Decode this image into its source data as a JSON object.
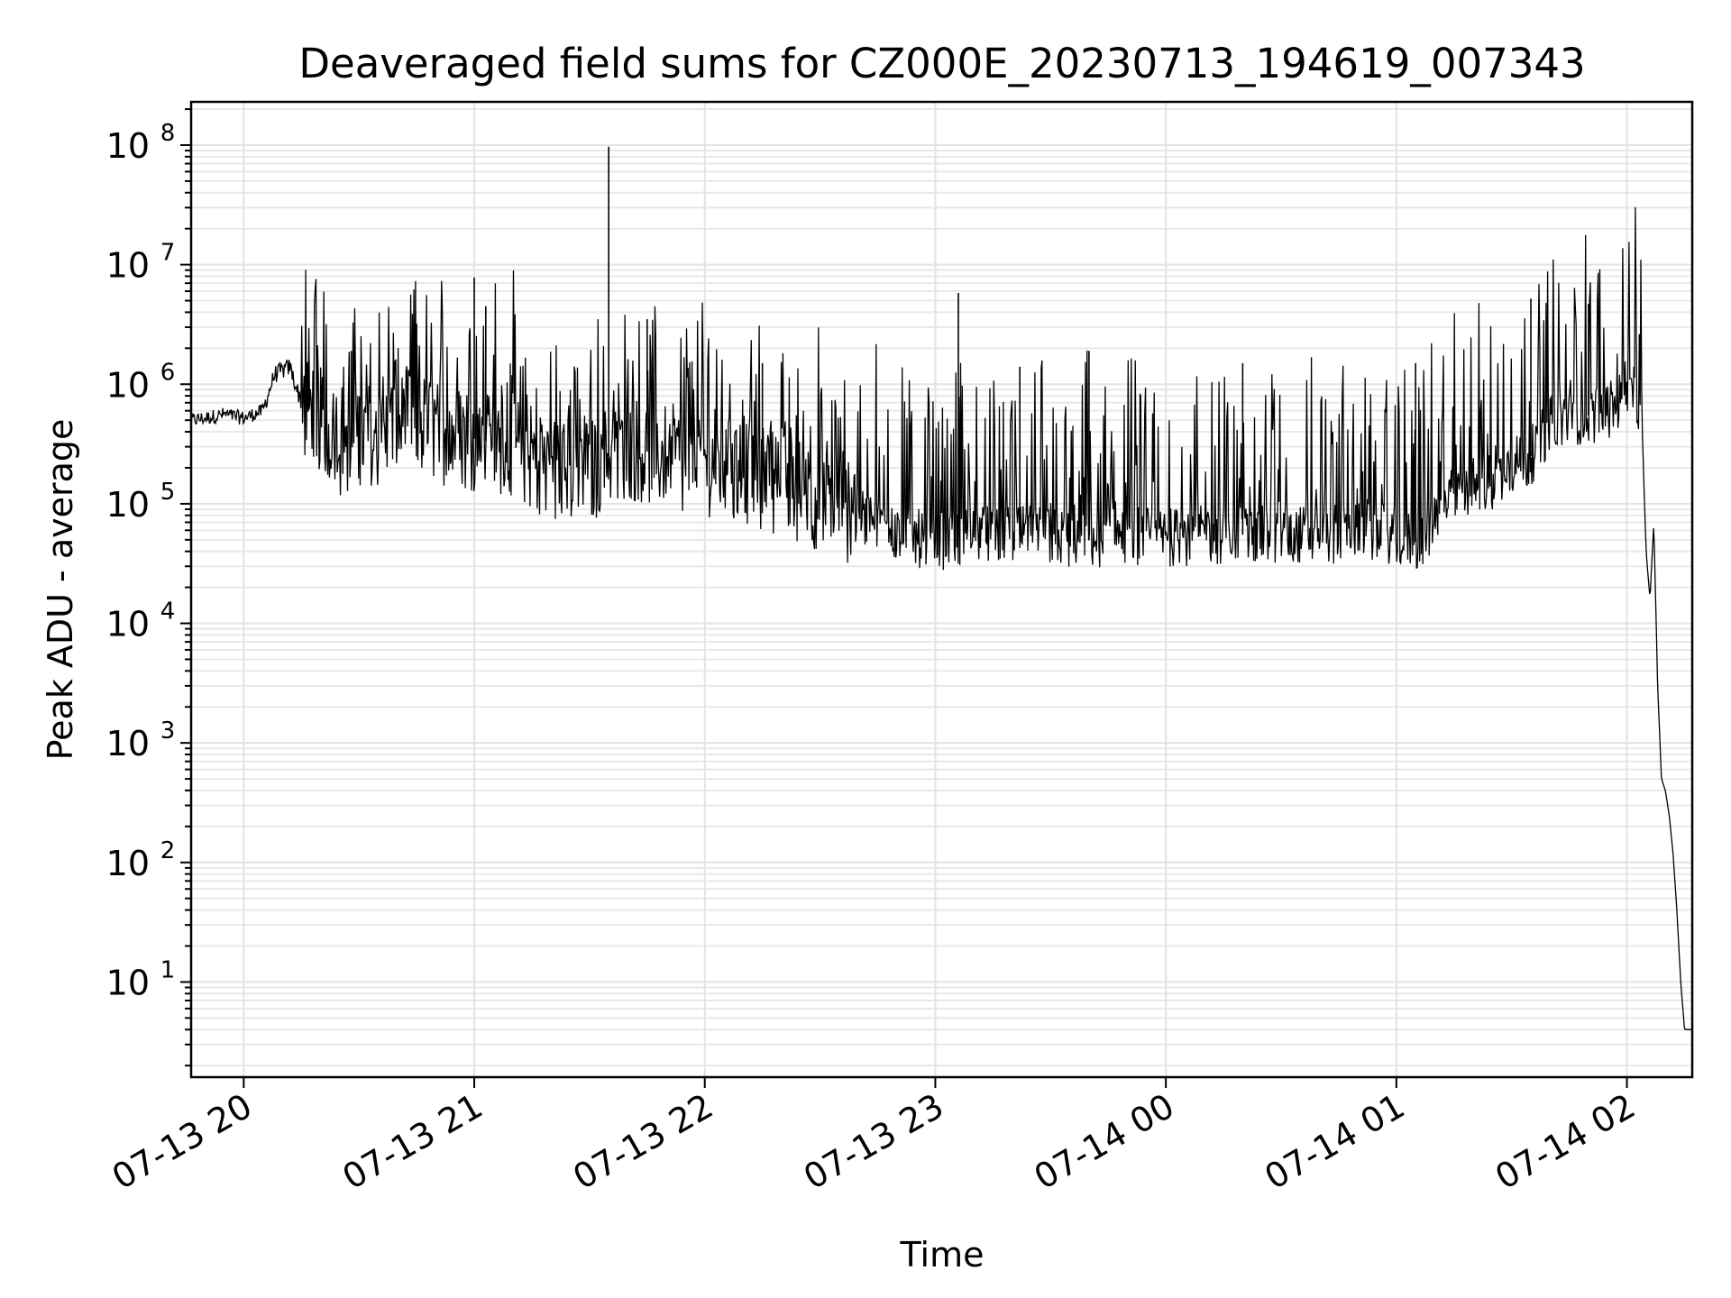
{
  "chart_data": {
    "type": "line",
    "title": "Deaveraged field sums for CZ000E_20230713_194619_007343",
    "xlabel": "Time",
    "ylabel": "Peak ADU - average",
    "yscale": "log",
    "ylim": [
      1.6,
      230000000
    ],
    "xlim": [
      "2023-07-13 19:46:19",
      "2023-07-14 02:17:00"
    ],
    "grid": "on (major and minor, light grey)",
    "legend": "none",
    "line_color": "#000000",
    "x_ticks": [
      {
        "t": "2023-07-13 20:00",
        "label": "07-13 20"
      },
      {
        "t": "2023-07-13 21:00",
        "label": "07-13 21"
      },
      {
        "t": "2023-07-13 22:00",
        "label": "07-13 22"
      },
      {
        "t": "2023-07-13 23:00",
        "label": "07-13 23"
      },
      {
        "t": "2023-07-14 00:00",
        "label": "07-14 00"
      },
      {
        "t": "2023-07-14 01:00",
        "label": "07-14 01"
      },
      {
        "t": "2023-07-14 02:00",
        "label": "07-14 02"
      }
    ],
    "y_ticks": [
      {
        "v": 10,
        "base": "10",
        "exp": "1"
      },
      {
        "v": 100,
        "base": "10",
        "exp": "2"
      },
      {
        "v": 1000,
        "base": "10",
        "exp": "3"
      },
      {
        "v": 10000,
        "base": "10",
        "exp": "4"
      },
      {
        "v": 100000,
        "base": "10",
        "exp": "5"
      },
      {
        "v": 1000000,
        "base": "10",
        "exp": "6"
      },
      {
        "v": 10000000,
        "base": "10",
        "exp": "7"
      },
      {
        "v": 100000000,
        "base": "10",
        "exp": "8"
      }
    ],
    "series": [
      {
        "x": [
          "2023-07-13 19:46:19",
          "2023-07-13 19:50",
          "2023-07-13 19:55",
          "2023-07-13 20:00",
          "2023-07-13 20:05",
          "2023-07-13 20:08",
          "2023-07-13 20:12",
          "2023-07-13 20:15",
          "2023-07-13 20:20",
          "2023-07-13 20:25",
          "2023-07-13 20:30",
          "2023-07-13 20:35",
          "2023-07-13 20:40",
          "2023-07-13 20:45",
          "2023-07-13 20:50",
          "2023-07-13 21:00",
          "2023-07-13 21:10",
          "2023-07-13 21:20",
          "2023-07-13 21:30",
          "2023-07-13 21:35",
          "2023-07-13 21:40",
          "2023-07-13 21:50",
          "2023-07-13 22:00",
          "2023-07-13 22:10",
          "2023-07-13 22:20",
          "2023-07-13 22:30",
          "2023-07-13 22:40",
          "2023-07-13 22:50",
          "2023-07-13 23:00",
          "2023-07-13 23:05",
          "2023-07-13 23:10",
          "2023-07-13 23:20",
          "2023-07-13 23:30",
          "2023-07-13 23:40",
          "2023-07-13 23:50",
          "2023-07-14 00:00",
          "2023-07-14 00:10",
          "2023-07-14 00:20",
          "2023-07-14 00:30",
          "2023-07-14 00:40",
          "2023-07-14 00:50",
          "2023-07-14 01:00",
          "2023-07-14 01:05",
          "2023-07-14 01:10",
          "2023-07-14 01:15",
          "2023-07-14 01:20",
          "2023-07-14 01:25",
          "2023-07-14 01:30",
          "2023-07-14 01:35",
          "2023-07-14 01:40",
          "2023-07-14 01:45",
          "2023-07-14 01:50",
          "2023-07-14 01:55",
          "2023-07-14 02:00",
          "2023-07-14 02:02",
          "2023-07-14 02:04",
          "2023-07-14 02:05",
          "2023-07-14 02:06",
          "2023-07-14 02:07",
          "2023-07-14 02:08",
          "2023-07-14 02:09",
          "2023-07-14 02:10",
          "2023-07-14 02:11",
          "2023-07-14 02:12",
          "2023-07-14 02:13",
          "2023-07-14 02:14",
          "2023-07-14 02:15",
          "2023-07-14 02:17"
        ],
        "y": [
          500000,
          520000,
          560000,
          520000,
          600000,
          1200000,
          1400000,
          700000,
          500000,
          300000,
          400000,
          350000,
          450000,
          500000,
          400000,
          350000,
          300000,
          200000,
          180000,
          250000,
          300000,
          250000,
          220000,
          180000,
          150000,
          110000,
          80000,
          55000,
          48000,
          52000,
          55000,
          55000,
          52000,
          50000,
          55000,
          52000,
          55000,
          55000,
          55000,
          55000,
          58000,
          55000,
          48000,
          65000,
          120000,
          140000,
          160000,
          180000,
          250000,
          450000,
          550000,
          550000,
          600000,
          800000,
          900000,
          400000,
          40000,
          16000,
          70000,
          3000,
          500,
          400,
          250,
          120,
          40,
          10,
          4,
          4
        ]
      }
    ],
    "spikes": [
      {
        "x": "2023-07-13 20:17",
        "y": 1600000
      },
      {
        "x": "2023-07-13 20:28",
        "y": 1900000
      },
      {
        "x": "2023-07-13 20:45",
        "y": 3200000
      },
      {
        "x": "2023-07-13 21:00",
        "y": 7800000
      },
      {
        "x": "2023-07-13 21:03",
        "y": 4500000
      },
      {
        "x": "2023-07-13 21:35",
        "y": 97000000
      },
      {
        "x": "2023-07-13 21:45",
        "y": 3500000
      },
      {
        "x": "2023-07-13 22:15",
        "y": 1500000
      },
      {
        "x": "2023-07-13 23:06",
        "y": 5800000
      },
      {
        "x": "2023-07-13 23:22",
        "y": 1400000
      },
      {
        "x": "2023-07-13 23:40",
        "y": 1900000
      },
      {
        "x": "2023-07-14 00:20",
        "y": 1500000
      },
      {
        "x": "2023-07-14 01:05",
        "y": 1500000
      },
      {
        "x": "2023-07-14 01:35",
        "y": 5200000
      },
      {
        "x": "2023-07-14 01:50",
        "y": 4700000
      }
    ]
  }
}
